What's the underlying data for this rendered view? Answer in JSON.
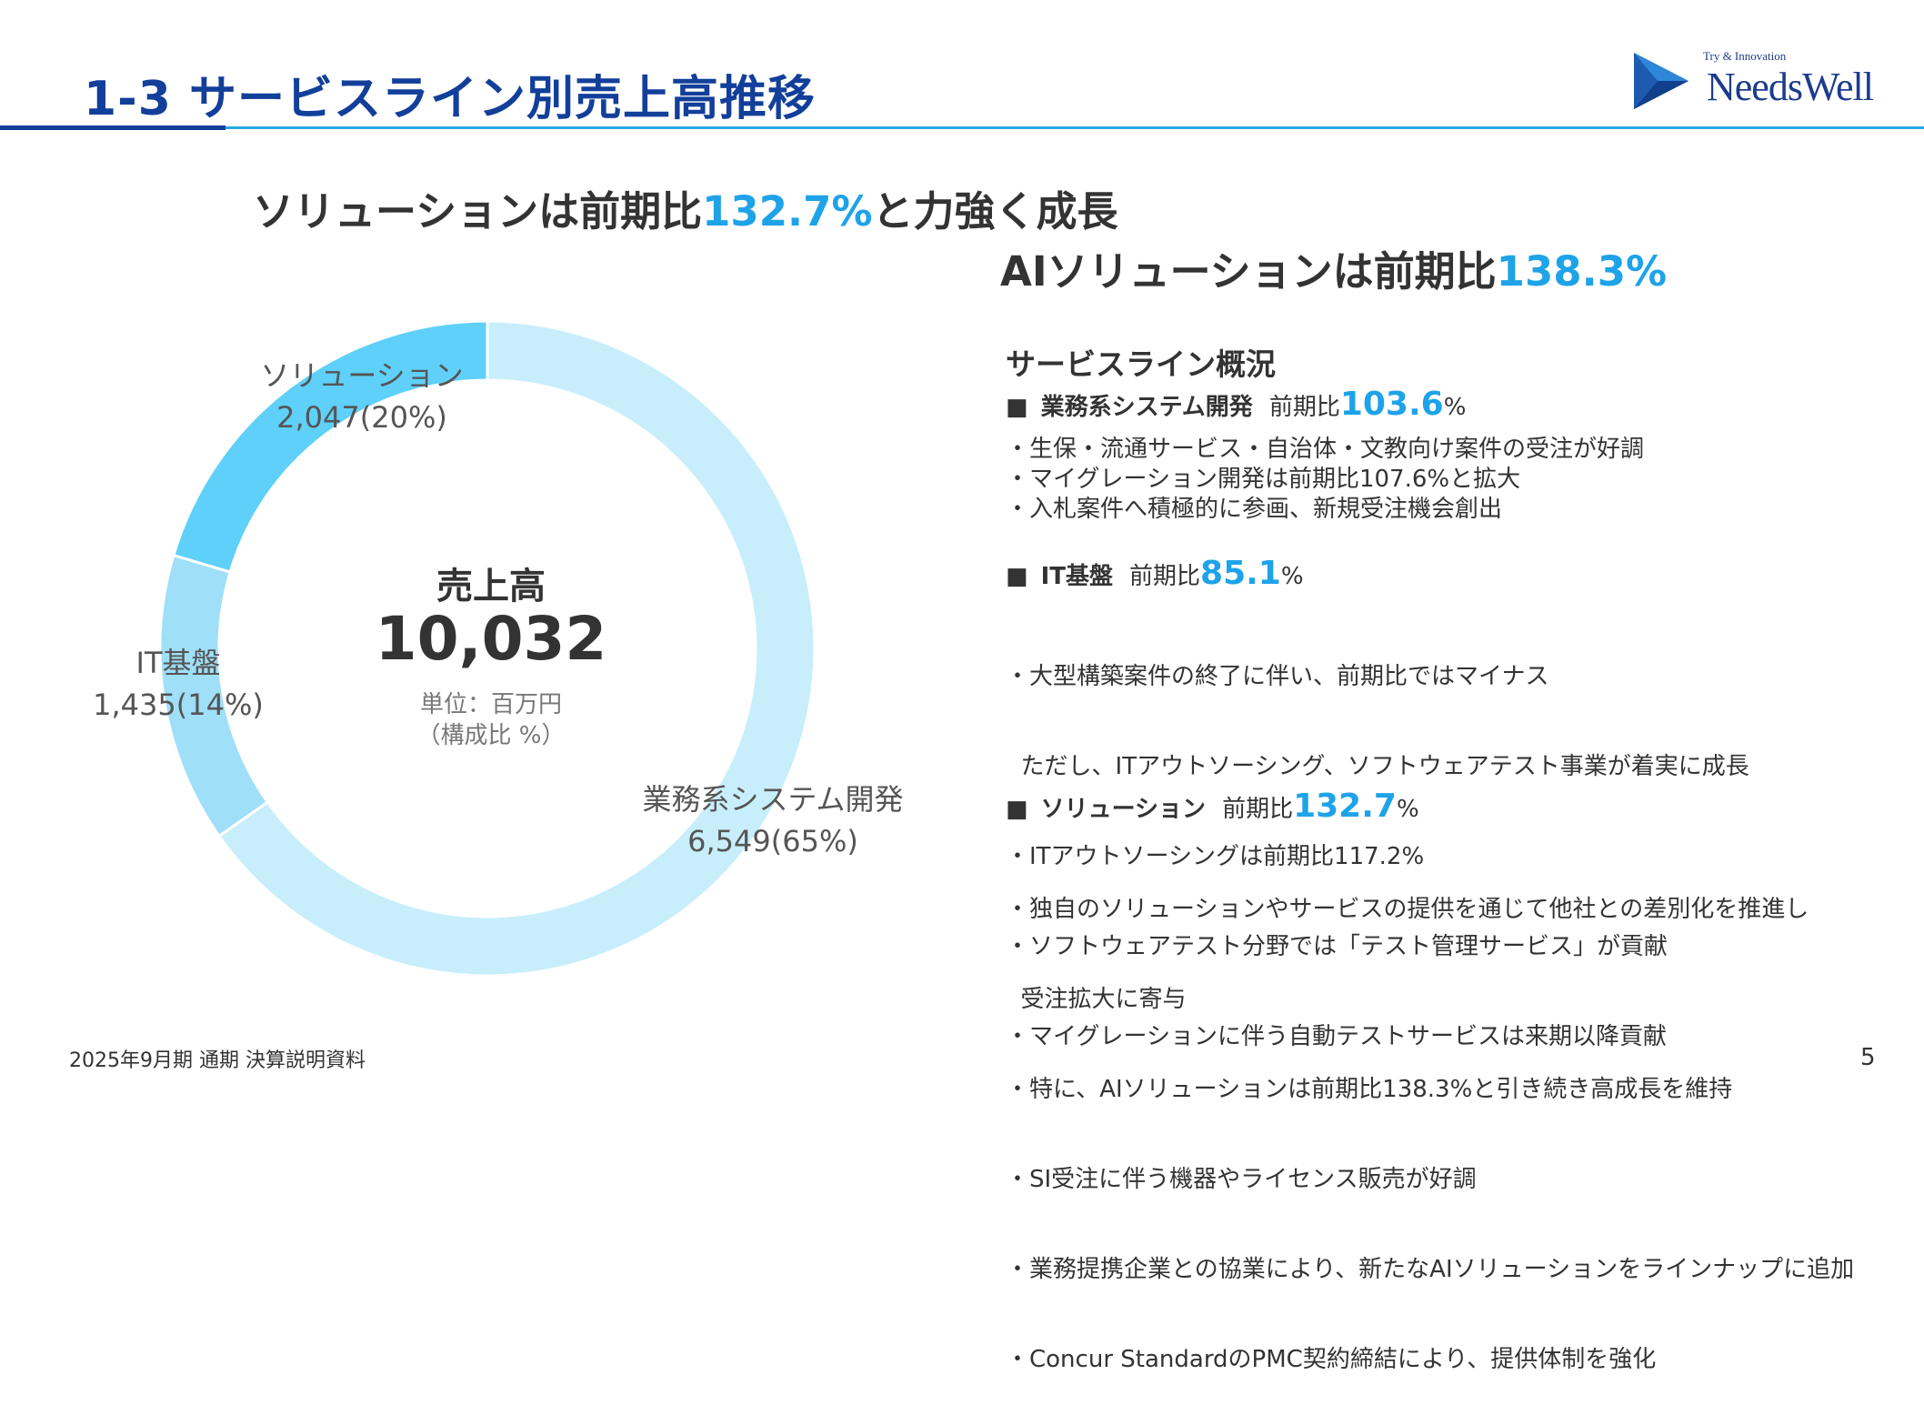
{
  "header": {
    "title": "1-3 サービスライン別売上高推移",
    "logo_tagline": "Try & Innovation",
    "logo_word": "NeedsWell"
  },
  "headlines": {
    "line1_prefix": "ソリューションは前期比",
    "line1_accent": "132.7%",
    "line1_suffix": "と力強く成長",
    "line2_prefix": "AIソリューションは前期比",
    "line2_accent": "138.3%"
  },
  "colors": {
    "title_navy": "#123f9a",
    "accent_blue": "#1ea3e8",
    "rule_blue": "#2aa9e5"
  },
  "chart_data": {
    "type": "pie",
    "donut": true,
    "categories": [
      "業務系システム開発",
      "IT基盤",
      "ソリューション"
    ],
    "values": [
      6549,
      1435,
      2047
    ],
    "percent_labels": [
      "6,549(65%)",
      "1,435(14%)",
      "2,047(20%)"
    ],
    "colors": [
      "#c8eefb",
      "#9fdff8",
      "#5fd0f9"
    ],
    "center": {
      "title": "売上高",
      "value": "10,032",
      "unit_line1": "単位：百万円",
      "unit_line2": "（構成比 %）"
    }
  },
  "overview": {
    "title": "サービスライン概況",
    "sections": [
      {
        "bullet": "■",
        "name": "業務系システム開発",
        "ratio_label": "前期比",
        "ratio_value": "103.6",
        "ratio_unit": "%",
        "lines": [
          "・生保・流通サービス・自治体・文教向け案件の受注が好調",
          "・マイグレーション開発は前期比107.6%と拡大",
          "・入札案件へ積極的に参画、新規受注機会創出"
        ]
      },
      {
        "bullet": "■",
        "name": "IT基盤",
        "ratio_label": "前期比",
        "ratio_value": "85.1",
        "ratio_unit": "%",
        "lines": [
          "・大型構築案件の終了に伴い、前期比ではマイナス",
          "  ただし、ITアウトソーシング、ソフトウェアテスト事業が着実に成長",
          "・ITアウトソーシングは前期比117.2%",
          "・ソフトウェアテスト分野では「テスト管理サービス」が貢献",
          "・マイグレーションに伴う自動テストサービスは来期以降貢献"
        ]
      },
      {
        "bullet": "■",
        "name": "ソリューション",
        "ratio_label": "前期比",
        "ratio_value": "132.7",
        "ratio_unit": "%",
        "lines": [
          "・独自のソリューションやサービスの提供を通じて他社との差別化を推進し",
          "  受注拡大に寄与",
          "・特に、AIソリューションは前期比138.3%と引き続き高成長を維持",
          "・SI受注に伴う機器やライセンス販売が好調",
          "・業務提携企業との協業により、新たなAIソリューションをラインナップに追加",
          "・Concur StandardのPMC契約締結により、提供体制を強化"
        ]
      }
    ]
  },
  "footer": {
    "left": "2025年9月期 通期 決算説明資料",
    "page_number": "5"
  }
}
